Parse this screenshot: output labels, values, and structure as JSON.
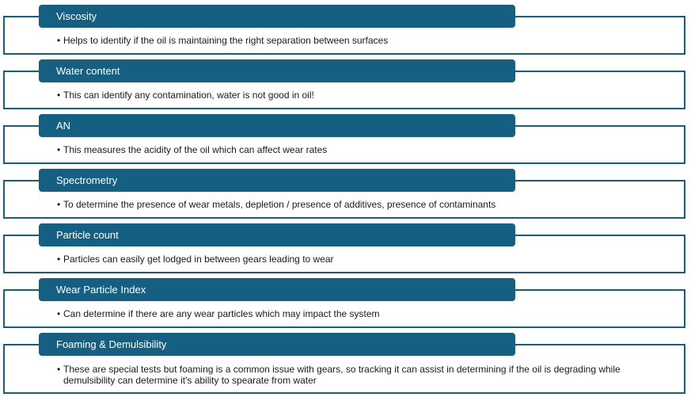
{
  "items": [
    {
      "title": "Viscosity",
      "desc": "Helps to identify if the oil is maintaining the right separation between surfaces"
    },
    {
      "title": "Water content",
      "desc": "This can identify any contamination, water is not good in oil!"
    },
    {
      "title": "AN",
      "desc": "This measures the acidity of the oil which can affect wear rates"
    },
    {
      "title": "Spectrometry",
      "desc": "To determine the presence of wear metals, depletion / presence of additives, presence of contaminants"
    },
    {
      "title": "Particle count",
      "desc": "Particles can easily get lodged in between gears leading to wear"
    },
    {
      "title": "Wear Particle Index",
      "desc": "Can determine if there are any wear particles which may impact the system"
    },
    {
      "title": "Foaming & Demulsibility",
      "desc": "These are special tests but foaming is a common issue with gears, so tracking it can assist in determining if the oil is degrading while demulsibility can determine it's ability to spearate from water"
    }
  ],
  "bullet": "•",
  "colors": {
    "accent": "#156082",
    "text": "#1a1a1a",
    "header_text": "#ffffff"
  }
}
